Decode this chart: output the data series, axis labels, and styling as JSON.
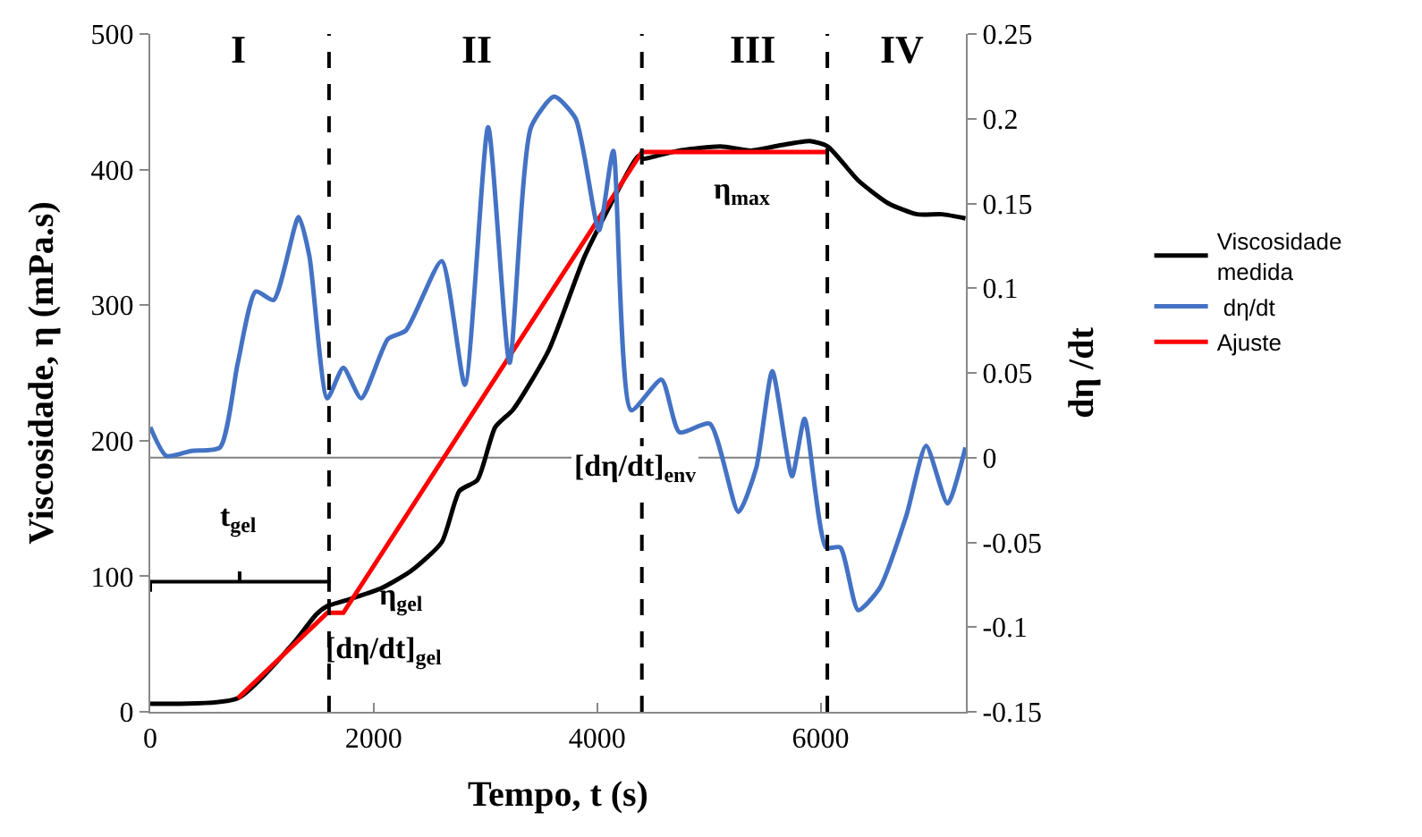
{
  "chart_data": {
    "type": "line",
    "xlabel": "Tempo, t (s)",
    "ylabel": "Viscosidade, η (mPa.s)",
    "y2label": "dη /dt",
    "xlim": [
      0,
      7300
    ],
    "xticks": [
      0,
      2000,
      4000,
      6000
    ],
    "ylim": [
      0,
      500
    ],
    "yticks": [
      0,
      100,
      200,
      300,
      400,
      500
    ],
    "y2lim": [
      -0.15,
      0.25
    ],
    "y2ticks": [
      -0.15,
      -0.1,
      -0.05,
      0,
      0.05,
      0.1,
      0.15,
      0.2,
      0.25
    ],
    "grid": false,
    "legend": "right",
    "marker": "none",
    "line_style": "solid",
    "series": [
      {
        "name": "Viscosidade medida",
        "color": "#000000",
        "x": [
          0,
          784,
          1264,
          1488,
          1584,
          1744,
          2064,
          2336,
          2608,
          2768,
          2928,
          3088,
          3248,
          3568,
          3888,
          4208,
          4368,
          4416,
          4528,
          4736,
          5104,
          5376,
          5648,
          5904,
          6064,
          6336,
          6608,
          6864,
          7088,
          7296
        ],
        "values": [
          6,
          10,
          49,
          72,
          78,
          82,
          91,
          104,
          125,
          163,
          171,
          210,
          223,
          267,
          336,
          388,
          410,
          408,
          410,
          414,
          417,
          414,
          418,
          421,
          417,
          392,
          375,
          367,
          367,
          364
        ]
      },
      {
        "name": " dη/dt",
        "color": "#4472c4",
        "axis": "y2",
        "x": [
          0,
          144,
          368,
          624,
          784,
          944,
          1104,
          1328,
          1424,
          1584,
          1728,
          1888,
          2128,
          2288,
          2608,
          2816,
          3024,
          3216,
          3408,
          3616,
          3808,
          4016,
          4144,
          4304,
          4576,
          4736,
          5008,
          5264,
          5424,
          5568,
          5744,
          5856,
          6048,
          6176,
          6336,
          6528,
          6768,
          6944,
          7136,
          7296
        ],
        "values": [
          0.018,
          0.001,
          0.004,
          0.006,
          0.056,
          0.098,
          0.093,
          0.142,
          0.119,
          0.035,
          0.053,
          0.035,
          0.07,
          0.075,
          0.116,
          0.043,
          0.195,
          0.056,
          0.195,
          0.213,
          0.2,
          0.134,
          0.181,
          0.028,
          0.046,
          0.015,
          0.02,
          -0.032,
          -0.006,
          0.051,
          -0.011,
          0.023,
          -0.053,
          -0.053,
          -0.09,
          -0.077,
          -0.034,
          0.007,
          -0.027,
          0.006
        ]
      },
      {
        "name": "Ajuste",
        "color": "#ff0000",
        "x": [
          784,
          1584,
          1728,
          4400,
          6064
        ],
        "values": [
          10,
          73,
          73,
          413,
          413
        ]
      }
    ],
    "ref_lines": [
      {
        "axis": "x",
        "value": 1600,
        "color": "#000000",
        "line_style": "dashed"
      },
      {
        "axis": "x",
        "value": 4400,
        "color": "#000000",
        "line_style": "dashed"
      },
      {
        "axis": "x",
        "value": 6060,
        "color": "#000000",
        "line_style": "dashed"
      },
      {
        "axis": "y2",
        "value": 0,
        "color": "#808080",
        "line_style": "solid"
      }
    ],
    "annotations": [
      "I",
      "II",
      "III",
      "IV",
      "t$_{gel}$",
      "η$_{gel}$",
      "[dη/dt]$_{gel}$",
      "[dη/dt]$_{env}$",
      "η$_{max}$"
    ]
  }
}
